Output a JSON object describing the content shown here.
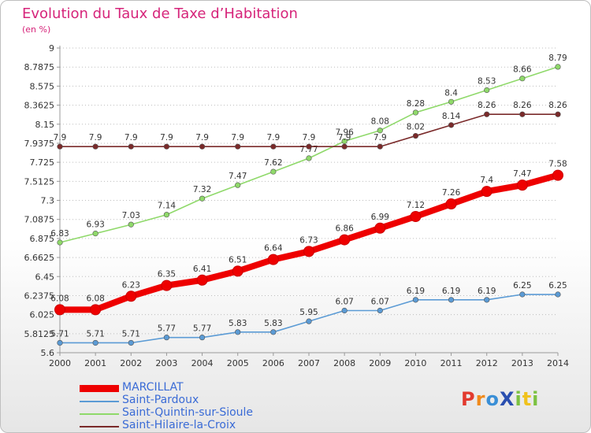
{
  "header": {
    "title": "Evolution du Taux de Taxe d’Habitation",
    "subtitle": "(en %)"
  },
  "logo": {
    "text": "ProXiti",
    "letters": [
      {
        "ch": "P",
        "color": "#e23a2e"
      },
      {
        "ch": "r",
        "color": "#f08a1c"
      },
      {
        "ch": "o",
        "color": "#3a8fd6"
      },
      {
        "ch": "X",
        "color": "#2a4fb0"
      },
      {
        "ch": "i",
        "color": "#7cc242"
      },
      {
        "ch": "t",
        "color": "#f0c21c"
      },
      {
        "ch": "i",
        "color": "#7cc242"
      }
    ]
  },
  "chart_data": {
    "type": "line",
    "x": [
      "2000",
      "2001",
      "2002",
      "2003",
      "2004",
      "2005",
      "2006",
      "2007",
      "2008",
      "2009",
      "2010",
      "2011",
      "2012",
      "2013",
      "2014"
    ],
    "ylim": [
      5.6,
      9
    ],
    "yticks": [
      "5.6",
      "5.8125",
      "6.025",
      "6.2375",
      "6.45",
      "6.6625",
      "6.875",
      "7.0875",
      "7.3",
      "7.5125",
      "7.725",
      "7.9375",
      "8.15",
      "8.3625",
      "8.575",
      "8.7875",
      "9"
    ],
    "grid": "horizontal dotted",
    "legend_position": "bottom-left",
    "series": [
      {
        "name": "MARCILLAT",
        "color": "#ee0000",
        "width": "thick",
        "values": [
          6.08,
          6.08,
          6.23,
          6.35,
          6.41,
          6.51,
          6.64,
          6.73,
          6.86,
          6.99,
          7.12,
          7.26,
          7.4,
          7.47,
          7.58
        ],
        "labels": [
          "6.08",
          "6.08",
          "6.23",
          "6.35",
          "6.41",
          "6.51",
          "6.64",
          "6.73",
          "6.86",
          "6.99",
          "7.12",
          "7.26",
          "7.4",
          "7.47",
          "7.58"
        ]
      },
      {
        "name": "Saint-Pardoux",
        "color": "#5b9bd5",
        "width": "thin",
        "values": [
          5.71,
          5.71,
          5.71,
          5.77,
          5.77,
          5.83,
          5.83,
          5.95,
          6.07,
          6.07,
          6.19,
          6.19,
          6.19,
          6.25,
          6.25
        ],
        "labels": [
          "5.71",
          "5.71",
          "5.71",
          "5.77",
          "5.77",
          "5.83",
          "5.83",
          "5.95",
          "6.07",
          "6.07",
          "6.19",
          "6.19",
          "6.19",
          "6.25",
          "6.25"
        ]
      },
      {
        "name": "Saint-Quintin-sur-Sioule",
        "color": "#8fd96a",
        "width": "thin",
        "values": [
          6.83,
          6.93,
          7.03,
          7.14,
          7.32,
          7.47,
          7.62,
          7.77,
          7.96,
          8.08,
          8.28,
          8.4,
          8.53,
          8.66,
          8.79
        ],
        "labels": [
          "6.83",
          "6.93",
          "7.03",
          "7.14",
          "7.32",
          "7.47",
          "7.62",
          "7.77",
          "7.96",
          "8.08",
          "8.28",
          "8.4",
          "8.53",
          "8.66",
          "8.79"
        ]
      },
      {
        "name": "Saint-Hilaire-la-Croix",
        "color": "#7a2a2a",
        "width": "thin",
        "values": [
          7.9,
          7.9,
          7.9,
          7.9,
          7.9,
          7.9,
          7.9,
          7.9,
          7.9,
          7.9,
          8.02,
          8.14,
          8.26,
          8.26,
          8.26
        ],
        "labels": [
          "7.9",
          "7.9",
          "7.9",
          "7.9",
          "7.9",
          "7.9",
          "7.9",
          "7.9",
          "7.9",
          "7.9",
          "8.02",
          "8.14",
          "8.26",
          "8.26",
          "8.26"
        ]
      }
    ]
  }
}
